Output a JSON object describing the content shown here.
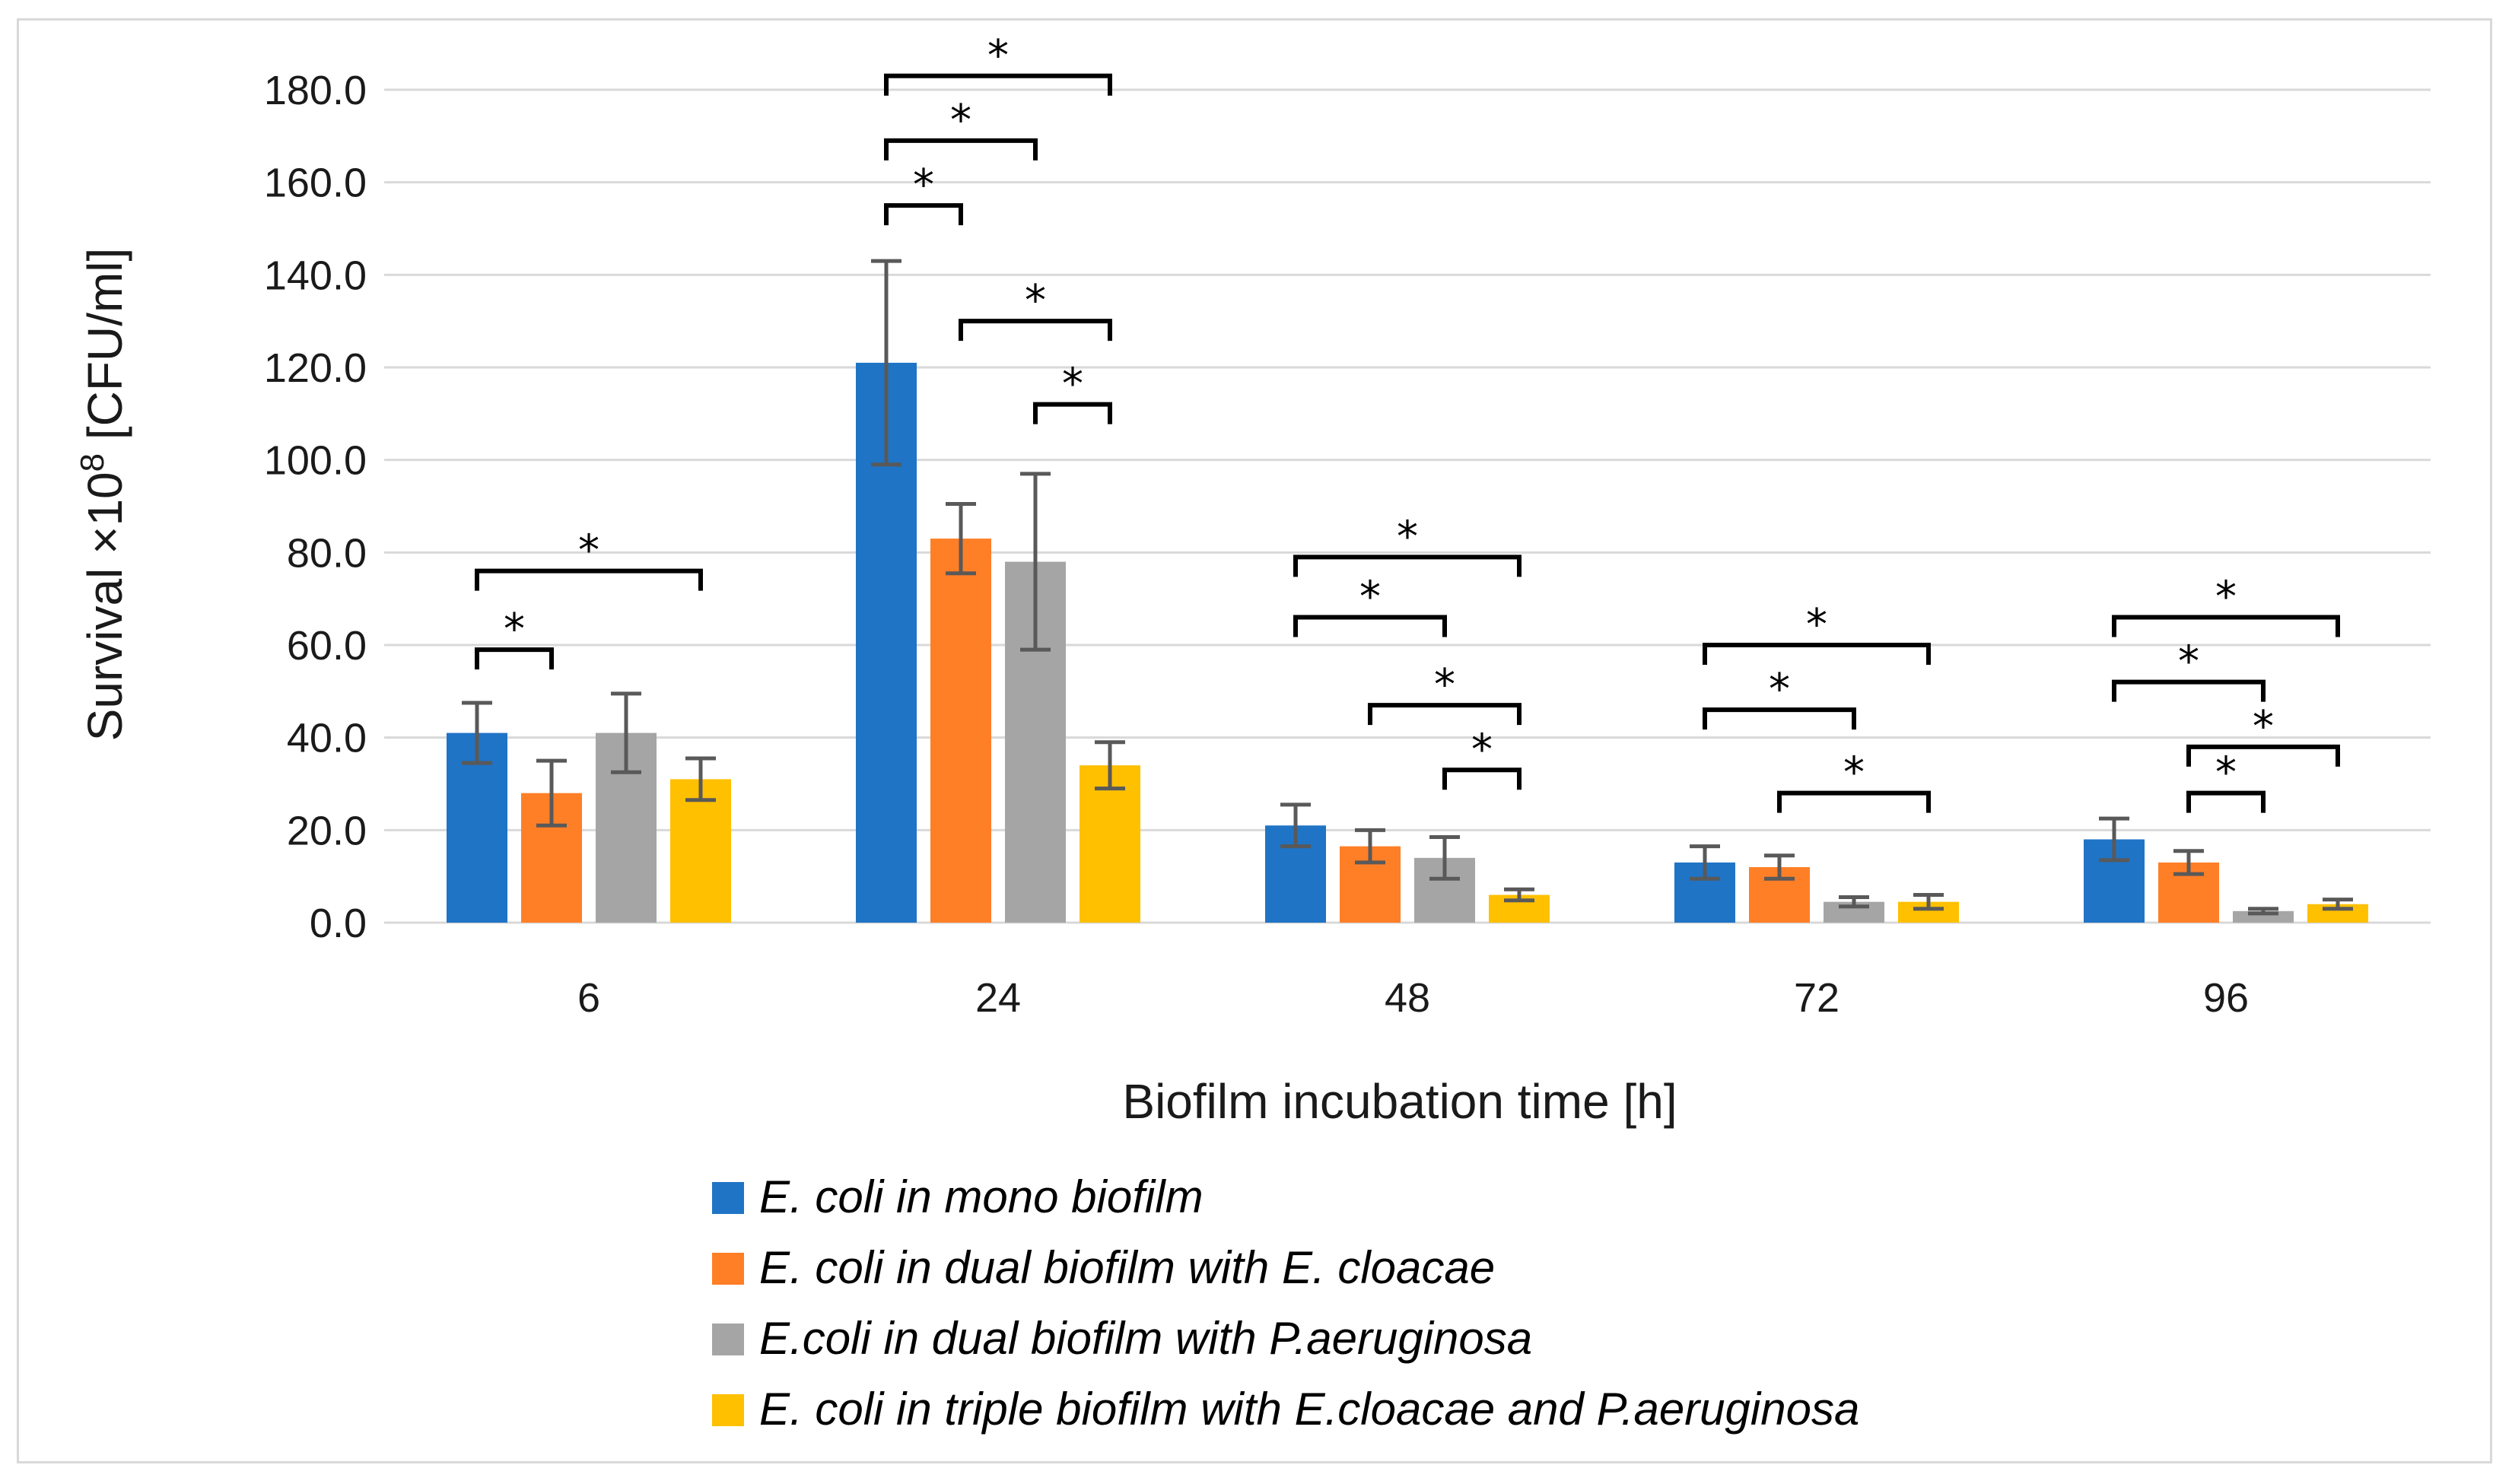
{
  "chart_data": {
    "type": "bar",
    "xlabel": "Biofilm incubation time [h]",
    "ylabel_main": "Survival ×10",
    "ylabel_sup": "8",
    "ylabel_unit": " [CFU/ml]",
    "ylim": [
      0,
      180
    ],
    "yticks": [
      "0.0",
      "20.0",
      "40.0",
      "60.0",
      "80.0",
      "100.0",
      "120.0",
      "140.0",
      "160.0",
      "180.0"
    ],
    "grid": true,
    "legend_position": "bottom",
    "categories": [
      "6",
      "24",
      "48",
      "72",
      "96"
    ],
    "series": [
      {
        "name": "E. coli in mono biofilm",
        "color": "#1f74c6",
        "values": [
          41,
          121,
          21,
          13,
          18
        ],
        "errors": [
          6.5,
          22,
          4.5,
          3.5,
          4.5
        ]
      },
      {
        "name": "E. coli in dual biofilm with E. cloacae",
        "color": "#ff7f27",
        "values": [
          28,
          83,
          16.5,
          12,
          13
        ],
        "errors": [
          7,
          7.5,
          3.5,
          2.5,
          2.5
        ]
      },
      {
        "name": "E.coli in dual biofilm with P.aeruginosa",
        "color": "#a5a5a5",
        "values": [
          41,
          78,
          14,
          4.5,
          2.5
        ],
        "errors": [
          8.5,
          19,
          4.5,
          1,
          0.5
        ]
      },
      {
        "name": "E. coli in triple biofilm with E.cloacae and P.aeruginosa",
        "color": "#ffc000",
        "values": [
          31,
          34,
          6,
          4.5,
          4
        ],
        "errors": [
          4.5,
          5,
          1.2,
          1.5,
          1
        ]
      }
    ],
    "annotations": {
      "symbol": "*",
      "significance_brackets": [
        {
          "category": 0,
          "from_series": 0,
          "to_series": 1,
          "y": 59
        },
        {
          "category": 0,
          "from_series": 0,
          "to_series": 3,
          "y": 76
        },
        {
          "category": 1,
          "from_series": 0,
          "to_series": 1,
          "y": 155
        },
        {
          "category": 1,
          "from_series": 0,
          "to_series": 2,
          "y": 169
        },
        {
          "category": 1,
          "from_series": 0,
          "to_series": 3,
          "y": 183
        },
        {
          "category": 1,
          "from_series": 1,
          "to_series": 3,
          "y": 130
        },
        {
          "category": 1,
          "from_series": 2,
          "to_series": 3,
          "y": 112
        },
        {
          "category": 2,
          "from_series": 0,
          "to_series": 2,
          "y": 66
        },
        {
          "category": 2,
          "from_series": 0,
          "to_series": 3,
          "y": 79
        },
        {
          "category": 2,
          "from_series": 1,
          "to_series": 3,
          "y": 47
        },
        {
          "category": 2,
          "from_series": 2,
          "to_series": 3,
          "y": 33
        },
        {
          "category": 3,
          "from_series": 0,
          "to_series": 2,
          "y": 46
        },
        {
          "category": 3,
          "from_series": 0,
          "to_series": 3,
          "y": 60
        },
        {
          "category": 3,
          "from_series": 1,
          "to_series": 3,
          "y": 28
        },
        {
          "category": 4,
          "from_series": 0,
          "to_series": 2,
          "y": 52
        },
        {
          "category": 4,
          "from_series": 0,
          "to_series": 3,
          "y": 66
        },
        {
          "category": 4,
          "from_series": 1,
          "to_series": 3,
          "y": 38
        },
        {
          "category": 4,
          "from_series": 1,
          "to_series": 2,
          "y": 28
        }
      ]
    }
  }
}
